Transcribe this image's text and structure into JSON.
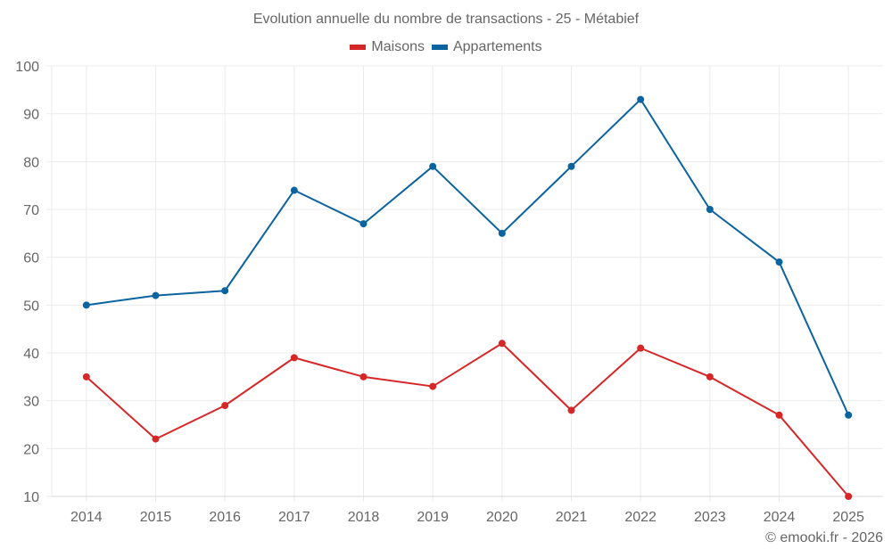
{
  "chart_data": {
    "type": "line",
    "title": "Evolution annuelle du nombre de transactions - 25 - Métabief",
    "xlabel": "",
    "ylabel": "",
    "x": [
      "2014",
      "2015",
      "2016",
      "2017",
      "2018",
      "2019",
      "2020",
      "2021",
      "2022",
      "2023",
      "2024",
      "2025"
    ],
    "ylim": [
      10,
      100
    ],
    "yticks": [
      10,
      20,
      30,
      40,
      50,
      60,
      70,
      80,
      90,
      100
    ],
    "grid": true,
    "legend_position": "top-center",
    "series": [
      {
        "name": "Maisons",
        "color": "#d62728",
        "values": [
          35,
          22,
          29,
          39,
          35,
          33,
          42,
          28,
          41,
          35,
          27,
          10
        ]
      },
      {
        "name": "Appartements",
        "color": "#0b63a0",
        "values": [
          50,
          52,
          53,
          74,
          67,
          79,
          65,
          79,
          93,
          70,
          59,
          27
        ]
      }
    ]
  },
  "footer": "© emooki.fr - 2026"
}
